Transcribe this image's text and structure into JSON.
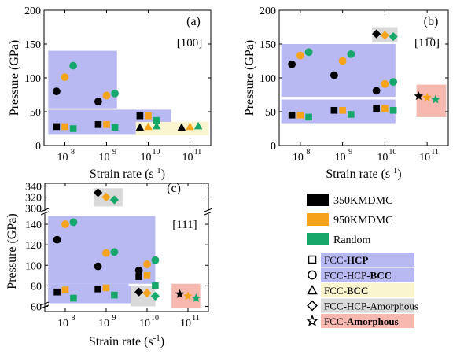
{
  "chart_data": [
    {
      "type": "scatter",
      "panel_label": "(a)",
      "direction": "[100]",
      "xlabel": "Strain rate (s",
      "xlabel_sup": "-1",
      "xlabel_end": ")",
      "ylabel": "Pressure (GPa)",
      "xscale": "log",
      "xlim": [
        7.5,
        11.5
      ],
      "ylim": [
        0,
        200
      ],
      "yticks": [
        "0",
        "50",
        "100",
        "150",
        "200"
      ],
      "xticks": [
        {
          "base": "10",
          "exp": "8",
          "pos": 8
        },
        {
          "base": "10",
          "exp": "9",
          "pos": 9
        },
        {
          "base": "10",
          "exp": "10",
          "pos": 10
        },
        {
          "base": "10",
          "exp": "11",
          "pos": 11
        }
      ],
      "regions": [
        {
          "phase": "FCC-HCP-BCC",
          "x": [
            7.6,
            9.25
          ],
          "y": [
            55,
            140
          ]
        },
        {
          "phase": "FCC-HCP",
          "x": [
            7.6,
            10.55
          ],
          "y": [
            17,
            53
          ]
        },
        {
          "phase": "FCC-BCC",
          "x": [
            9.7,
            11.45
          ],
          "y": [
            15,
            35
          ]
        }
      ],
      "points": [
        {
          "rate_exp": 8,
          "pressure": 80,
          "source": "350KMDMC",
          "phase": "FCC-HCP-BCC"
        },
        {
          "rate_exp": 8,
          "pressure": 101,
          "source": "950KMDMC",
          "phase": "FCC-HCP-BCC"
        },
        {
          "rate_exp": 8,
          "pressure": 118,
          "source": "Random",
          "phase": "FCC-HCP-BCC"
        },
        {
          "rate_exp": 9,
          "pressure": 65,
          "source": "350KMDMC",
          "phase": "FCC-HCP-BCC"
        },
        {
          "rate_exp": 9,
          "pressure": 74,
          "source": "950KMDMC",
          "phase": "FCC-HCP-BCC"
        },
        {
          "rate_exp": 9,
          "pressure": 77,
          "source": "Random",
          "phase": "FCC-HCP-BCC"
        },
        {
          "rate_exp": 8,
          "pressure": 28,
          "source": "350KMDMC",
          "phase": "FCC-HCP"
        },
        {
          "rate_exp": 8,
          "pressure": 28,
          "source": "950KMDMC",
          "phase": "FCC-HCP"
        },
        {
          "rate_exp": 8,
          "pressure": 25,
          "source": "Random",
          "phase": "FCC-HCP"
        },
        {
          "rate_exp": 9,
          "pressure": 31,
          "source": "350KMDMC",
          "phase": "FCC-HCP"
        },
        {
          "rate_exp": 9,
          "pressure": 31,
          "source": "950KMDMC",
          "phase": "FCC-HCP"
        },
        {
          "rate_exp": 9,
          "pressure": 27,
          "source": "Random",
          "phase": "FCC-HCP"
        },
        {
          "rate_exp": 10,
          "pressure": 44,
          "source": "350KMDMC",
          "phase": "FCC-HCP"
        },
        {
          "rate_exp": 10,
          "pressure": 44,
          "source": "950KMDMC",
          "phase": "FCC-HCP"
        },
        {
          "rate_exp": 10,
          "pressure": 37,
          "source": "Random",
          "phase": "FCC-HCP"
        },
        {
          "rate_exp": 10,
          "pressure": 27,
          "source": "350KMDMC",
          "phase": "FCC-BCC"
        },
        {
          "rate_exp": 10,
          "pressure": 28,
          "source": "950KMDMC",
          "phase": "FCC-BCC"
        },
        {
          "rate_exp": 10,
          "pressure": 29,
          "source": "Random",
          "phase": "FCC-BCC"
        },
        {
          "rate_exp": 11,
          "pressure": 27,
          "source": "350KMDMC",
          "phase": "FCC-BCC"
        },
        {
          "rate_exp": 11,
          "pressure": 28,
          "source": "950KMDMC",
          "phase": "FCC-BCC"
        },
        {
          "rate_exp": 11,
          "pressure": 29,
          "source": "Random",
          "phase": "FCC-BCC"
        }
      ]
    },
    {
      "type": "scatter",
      "panel_label": "(b)",
      "direction": "[11̅0]",
      "xlabel": "Strain rate (s",
      "xlabel_sup": "-1",
      "xlabel_end": ")",
      "ylabel": "Pressure (GPa)",
      "xscale": "log",
      "xlim": [
        7.5,
        11.5
      ],
      "ylim": [
        0,
        200
      ],
      "yticks": [
        "0",
        "50",
        "100",
        "150",
        "200"
      ],
      "xticks": [
        {
          "base": "10",
          "exp": "8",
          "pos": 8
        },
        {
          "base": "10",
          "exp": "9",
          "pos": 9
        },
        {
          "base": "10",
          "exp": "10",
          "pos": 10
        },
        {
          "base": "10",
          "exp": "11",
          "pos": 11
        }
      ],
      "regions": [
        {
          "phase": "FCC-HCP-BCC",
          "x": [
            7.55,
            10.25
          ],
          "y": [
            72,
            150
          ]
        },
        {
          "phase": "FCC-HCP",
          "x": [
            7.55,
            10.25
          ],
          "y": [
            33,
            68
          ]
        },
        {
          "phase": "FCC-HCP-Amorphous",
          "x": [
            9.7,
            10.3
          ],
          "y": [
            153,
            175
          ]
        },
        {
          "phase": "FCC-Amorphous",
          "x": [
            10.75,
            11.45
          ],
          "y": [
            42,
            90
          ]
        }
      ],
      "points": [
        {
          "rate_exp": 8,
          "pressure": 120,
          "source": "350KMDMC",
          "phase": "FCC-HCP-BCC"
        },
        {
          "rate_exp": 8,
          "pressure": 133,
          "source": "950KMDMC",
          "phase": "FCC-HCP-BCC"
        },
        {
          "rate_exp": 8,
          "pressure": 138,
          "source": "Random",
          "phase": "FCC-HCP-BCC"
        },
        {
          "rate_exp": 9,
          "pressure": 104,
          "source": "350KMDMC",
          "phase": "FCC-HCP-BCC"
        },
        {
          "rate_exp": 9,
          "pressure": 125,
          "source": "950KMDMC",
          "phase": "FCC-HCP-BCC"
        },
        {
          "rate_exp": 9,
          "pressure": 135,
          "source": "Random",
          "phase": "FCC-HCP-BCC"
        },
        {
          "rate_exp": 10,
          "pressure": 81,
          "source": "350KMDMC",
          "phase": "FCC-HCP-BCC"
        },
        {
          "rate_exp": 10,
          "pressure": 91,
          "source": "950KMDMC",
          "phase": "FCC-HCP-BCC"
        },
        {
          "rate_exp": 10,
          "pressure": 94,
          "source": "Random",
          "phase": "FCC-HCP-BCC"
        },
        {
          "rate_exp": 8,
          "pressure": 45,
          "source": "350KMDMC",
          "phase": "FCC-HCP"
        },
        {
          "rate_exp": 8,
          "pressure": 45,
          "source": "950KMDMC",
          "phase": "FCC-HCP"
        },
        {
          "rate_exp": 8,
          "pressure": 42,
          "source": "Random",
          "phase": "FCC-HCP"
        },
        {
          "rate_exp": 9,
          "pressure": 52,
          "source": "350KMDMC",
          "phase": "FCC-HCP"
        },
        {
          "rate_exp": 9,
          "pressure": 52,
          "source": "950KMDMC",
          "phase": "FCC-HCP"
        },
        {
          "rate_exp": 9,
          "pressure": 46,
          "source": "Random",
          "phase": "FCC-HCP"
        },
        {
          "rate_exp": 10,
          "pressure": 55,
          "source": "350KMDMC",
          "phase": "FCC-HCP"
        },
        {
          "rate_exp": 10,
          "pressure": 55,
          "source": "950KMDMC",
          "phase": "FCC-HCP"
        },
        {
          "rate_exp": 10,
          "pressure": 52,
          "source": "Random",
          "phase": "FCC-HCP"
        },
        {
          "rate_exp": 10,
          "pressure": 165,
          "source": "350KMDMC",
          "phase": "FCC-HCP-Amorphous"
        },
        {
          "rate_exp": 10,
          "pressure": 163,
          "source": "950KMDMC",
          "phase": "FCC-HCP-Amorphous"
        },
        {
          "rate_exp": 10,
          "pressure": 161,
          "source": "Random",
          "phase": "FCC-HCP-Amorphous"
        },
        {
          "rate_exp": 11,
          "pressure": 73,
          "source": "350KMDMC",
          "phase": "FCC-Amorphous"
        },
        {
          "rate_exp": 11,
          "pressure": 71,
          "source": "950KMDMC",
          "phase": "FCC-Amorphous"
        },
        {
          "rate_exp": 11,
          "pressure": 68,
          "source": "Random",
          "phase": "FCC-Amorphous"
        }
      ]
    },
    {
      "type": "scatter",
      "panel_label": "(c)",
      "direction": "[111]",
      "xlabel": "Strain rate (s",
      "xlabel_sup": "-1",
      "xlabel_end": ")",
      "ylabel": "Pressure (GPa)",
      "xscale": "log",
      "xlim": [
        7.5,
        11.5
      ],
      "ylim_lower": [
        55,
        150
      ],
      "ylim_upper": [
        295,
        345
      ],
      "axis_break": "between 150 and 295",
      "yticks_lower": [
        "60",
        "80",
        "100",
        "120",
        "140"
      ],
      "yticks_upper": [
        "300",
        "320",
        "340"
      ],
      "xticks": [
        {
          "base": "10",
          "exp": "8",
          "pos": 8
        },
        {
          "base": "10",
          "exp": "9",
          "pos": 9
        },
        {
          "base": "10",
          "exp": "10",
          "pos": 10
        },
        {
          "base": "10",
          "exp": "11",
          "pos": 11
        }
      ],
      "regions": [
        {
          "phase": "FCC-HCP-BCC",
          "x": [
            7.58,
            10.2
          ],
          "y": [
            82,
            148
          ]
        },
        {
          "phase": "FCC-HCP",
          "x": [
            7.58,
            9.55
          ],
          "y": [
            63,
            82
          ]
        },
        {
          "phase": "FCC-HCP",
          "x": [
            9.55,
            10.2
          ],
          "y": [
            63,
            80
          ]
        },
        {
          "phase": "FCC-HCP-Amorphous",
          "x": [
            9.6,
            10.2
          ],
          "y": [
            60,
            80
          ]
        },
        {
          "phase": "FCC-HCP-Amorphous",
          "x": [
            8.7,
            9.4
          ],
          "y": [
            303,
            336
          ]
        },
        {
          "phase": "FCC-Amorphous",
          "x": [
            10.6,
            11.3
          ],
          "y": [
            58,
            82
          ]
        }
      ],
      "points": [
        {
          "rate_exp": 8,
          "pressure": 125,
          "source": "350KMDMC",
          "phase": "FCC-HCP-BCC"
        },
        {
          "rate_exp": 8,
          "pressure": 140,
          "source": "950KMDMC",
          "phase": "FCC-HCP-BCC"
        },
        {
          "rate_exp": 8,
          "pressure": 142,
          "source": "Random",
          "phase": "FCC-HCP-BCC"
        },
        {
          "rate_exp": 9,
          "pressure": 99,
          "source": "350KMDMC",
          "phase": "FCC-HCP-BCC"
        },
        {
          "rate_exp": 9,
          "pressure": 112,
          "source": "950KMDMC",
          "phase": "FCC-HCP-BCC"
        },
        {
          "rate_exp": 9,
          "pressure": 113,
          "source": "Random",
          "phase": "FCC-HCP-BCC"
        },
        {
          "rate_exp": 10,
          "pressure": 95,
          "source": "350KMDMC",
          "phase": "FCC-HCP-BCC"
        },
        {
          "rate_exp": 10,
          "pressure": 101,
          "source": "950KMDMC",
          "phase": "FCC-HCP-BCC"
        },
        {
          "rate_exp": 10,
          "pressure": 105,
          "source": "Random",
          "phase": "FCC-HCP-BCC"
        },
        {
          "rate_exp": 8,
          "pressure": 74,
          "source": "350KMDMC",
          "phase": "FCC-HCP"
        },
        {
          "rate_exp": 8,
          "pressure": 76,
          "source": "950KMDMC",
          "phase": "FCC-HCP"
        },
        {
          "rate_exp": 8,
          "pressure": 68,
          "source": "Random",
          "phase": "FCC-HCP"
        },
        {
          "rate_exp": 9,
          "pressure": 77,
          "source": "350KMDMC",
          "phase": "FCC-HCP"
        },
        {
          "rate_exp": 9,
          "pressure": 78,
          "source": "950KMDMC",
          "phase": "FCC-HCP"
        },
        {
          "rate_exp": 9,
          "pressure": 71,
          "source": "Random",
          "phase": "FCC-HCP"
        },
        {
          "rate_exp": 10,
          "pressure": 89,
          "source": "350KMDMC",
          "phase": "FCC-HCP"
        },
        {
          "rate_exp": 10,
          "pressure": 90,
          "source": "950KMDMC",
          "phase": "FCC-HCP"
        },
        {
          "rate_exp": 10,
          "pressure": 80,
          "source": "Random",
          "phase": "FCC-HCP"
        },
        {
          "rate_exp": 10,
          "pressure": 74,
          "source": "350KMDMC",
          "phase": "FCC-HCP-Amorphous"
        },
        {
          "rate_exp": 10,
          "pressure": 73,
          "source": "950KMDMC",
          "phase": "FCC-HCP-Amorphous"
        },
        {
          "rate_exp": 10,
          "pressure": 70,
          "source": "Random",
          "phase": "FCC-HCP-Amorphous"
        },
        {
          "rate_exp": 9,
          "pressure": 328,
          "source": "350KMDMC",
          "phase": "FCC-HCP-Amorphous"
        },
        {
          "rate_exp": 9,
          "pressure": 320,
          "source": "950KMDMC",
          "phase": "FCC-HCP-Amorphous"
        },
        {
          "rate_exp": 9,
          "pressure": 315,
          "source": "Random",
          "phase": "FCC-HCP-Amorphous"
        },
        {
          "rate_exp": 11,
          "pressure": 72,
          "source": "350KMDMC",
          "phase": "FCC-Amorphous"
        },
        {
          "rate_exp": 11,
          "pressure": 70,
          "source": "950KMDMC",
          "phase": "FCC-Amorphous"
        },
        {
          "rate_exp": 11,
          "pressure": 68,
          "source": "Random",
          "phase": "FCC-Amorphous"
        }
      ]
    }
  ],
  "legend": {
    "sources": [
      {
        "key": "350KMDMC",
        "label": "350KMDMC",
        "color": "#000000"
      },
      {
        "key": "950KMDMC",
        "label": "950KMDMC",
        "color": "#f5a31a"
      },
      {
        "key": "Random",
        "label": "Random",
        "color": "#16a86a"
      }
    ],
    "phases": [
      {
        "key": "FCC-HCP",
        "marker": "square",
        "prefix": "FCC-",
        "bold": "HCP",
        "suffix": "",
        "fill": "#b8b8f2"
      },
      {
        "key": "FCC-HCP-BCC",
        "marker": "circle",
        "prefix": "FCC-HCP-",
        "bold": "BCC",
        "suffix": "",
        "fill": "#b8b8f2"
      },
      {
        "key": "FCC-BCC",
        "marker": "triangle",
        "prefix": "FCC-",
        "bold": "BCC",
        "suffix": "",
        "fill": "#fbf5cf"
      },
      {
        "key": "FCC-HCP-Amorphous",
        "marker": "diamond",
        "prefix": "FCC-HCP-Amorphous",
        "bold": "",
        "suffix": "",
        "fill": "#d9d9d9"
      },
      {
        "key": "FCC-Amorphous",
        "marker": "star",
        "prefix": "FCC-",
        "bold": "Amorphous",
        "suffix": "",
        "fill": "#f7b8b0"
      }
    ]
  }
}
